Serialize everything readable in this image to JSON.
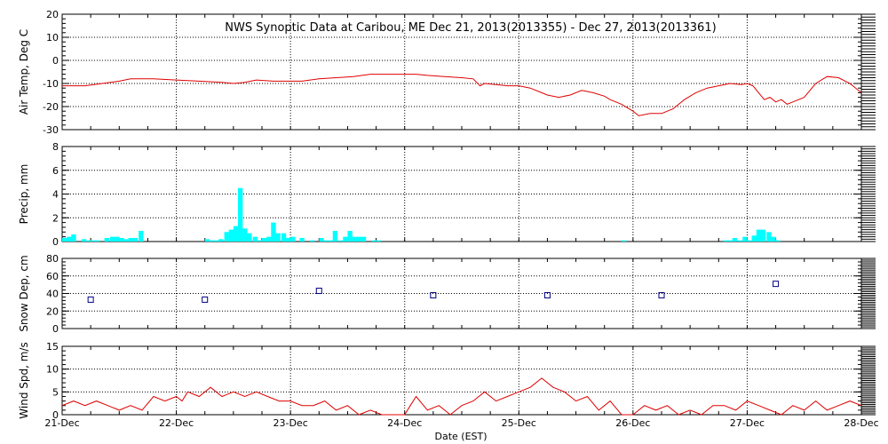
{
  "chart_data": {
    "title": "NWS Synoptic Data at Caribou, ME    Dec 21, 2013(2013355) - Dec 27, 2013(2013361)",
    "xlabel": "Date (EST)",
    "x_ticks": [
      "21-Dec",
      "22-Dec",
      "23-Dec",
      "24-Dec",
      "25-Dec",
      "26-Dec",
      "27-Dec",
      "28-Dec"
    ],
    "xlim_days": [
      0,
      7
    ],
    "colors": {
      "line": "#e00000",
      "bar": "#00ffff",
      "marker": "#000080",
      "grid": "#000000"
    },
    "panels": [
      {
        "id": "temp",
        "type": "line",
        "ylabel": "Air Temp, Deg C",
        "ylim": [
          -30,
          20
        ],
        "yticks": [
          "-30",
          "-20",
          "-10",
          "0",
          "10",
          "20"
        ],
        "series": [
          {
            "x": [
              0,
              0.2,
              0.35,
              0.5,
              0.6,
              0.8,
              1.0,
              1.2,
              1.4,
              1.5,
              1.6,
              1.7,
              1.85,
              2.0,
              2.1,
              2.25,
              2.4,
              2.55,
              2.7,
              2.85,
              3.0,
              3.1,
              3.2,
              3.35,
              3.5,
              3.6,
              3.66,
              3.7,
              3.8,
              3.9,
              4.0,
              4.1,
              4.2,
              4.25,
              4.35,
              4.45,
              4.55,
              4.65,
              4.75,
              4.8,
              4.9,
              5.0,
              5.05,
              5.15,
              5.25,
              5.35,
              5.45,
              5.55,
              5.65,
              5.75,
              5.85,
              5.95,
              6.0,
              6.05,
              6.1,
              6.15,
              6.2,
              6.25,
              6.3,
              6.35,
              6.45,
              6.5,
              6.55,
              6.6,
              6.7,
              6.8,
              6.9,
              7.0
            ],
            "y": [
              -11,
              -11,
              -10,
              -9,
              -8,
              -8,
              -8.5,
              -9,
              -9.5,
              -10,
              -9.5,
              -8.5,
              -9,
              -9,
              -9,
              -8,
              -7.5,
              -7,
              -6,
              -6,
              -6,
              -6,
              -6.5,
              -7,
              -7.5,
              -8,
              -11,
              -10,
              -10.5,
              -11,
              -11,
              -12,
              -14,
              -15,
              -16,
              -15,
              -13,
              -14,
              -15.5,
              -17,
              -19,
              -22,
              -24,
              -23,
              -23,
              -21,
              -17,
              -14,
              -12,
              -11,
              -10,
              -10.5,
              -10,
              -11,
              -14,
              -17,
              -16,
              -18,
              -17,
              -19,
              -17,
              -16,
              -13,
              -10,
              -7,
              -7.5,
              -10,
              -14
            ]
          }
        ]
      },
      {
        "id": "precip",
        "type": "bar",
        "ylabel": "Precip, mm",
        "ylim": [
          0,
          8
        ],
        "yticks": [
          "0",
          "2",
          "4",
          "6",
          "8"
        ],
        "bar_width_days": 0.0417,
        "bars": {
          "x": [
            0.0,
            0.04,
            0.08,
            0.17,
            0.21,
            0.25,
            0.29,
            0.37,
            0.42,
            0.46,
            0.5,
            0.54,
            0.58,
            0.62,
            0.67,
            1.25,
            1.29,
            1.33,
            1.37,
            1.42,
            1.46,
            1.5,
            1.54,
            1.58,
            1.62,
            1.67,
            1.71,
            1.75,
            1.79,
            1.83,
            1.87,
            1.92,
            1.96,
            2.0,
            2.08,
            2.17,
            2.25,
            2.29,
            2.33,
            2.37,
            2.42,
            2.46,
            2.5,
            2.54,
            2.58,
            2.62,
            2.71,
            2.75,
            4.9,
            5.79,
            5.83,
            5.87,
            5.92,
            5.96,
            6.0,
            6.04,
            6.08,
            6.12,
            6.17,
            6.21,
            6.25,
            6.29,
            6.33,
            6.37,
            6.42,
            6.46,
            6.5,
            6.54,
            6.58,
            6.62,
            6.67,
            6.71,
            6.75,
            6.79,
            6.83,
            6.87,
            6.92
          ],
          "values": [
            0.3,
            0.4,
            0.6,
            0.2,
            0.1,
            0.1,
            0.1,
            0.3,
            0.4,
            0.4,
            0.3,
            0.2,
            0.3,
            0.3,
            0.9,
            0.2,
            0.1,
            0.1,
            0.2,
            0.8,
            1.0,
            1.3,
            4.5,
            1.1,
            0.7,
            0.4,
            0.1,
            0.3,
            0.4,
            1.6,
            0.7,
            0.7,
            0.3,
            0.4,
            0.3,
            0.1,
            0.3,
            0.1,
            0.1,
            0.9,
            0.1,
            0.4,
            0.9,
            0.4,
            0.4,
            0.4,
            0.1,
            0.1,
            0.1,
            0.1,
            0.1,
            0.3,
            0.1,
            0.4,
            0.1,
            0.5,
            1.0,
            1.0,
            0.8,
            0.4,
            0.1,
            0.0,
            0.0,
            0.0,
            0.0,
            0.0,
            0.0,
            0.0,
            0.0,
            0.0,
            0.0,
            0.0,
            0.0,
            0.0,
            0.0,
            0.0,
            0.0
          ]
        }
      },
      {
        "id": "snow",
        "type": "scatter",
        "ylabel": "Snow Dep, cm",
        "ylim": [
          0,
          80
        ],
        "yticks": [
          "0",
          "20",
          "40",
          "60",
          "80"
        ],
        "series": [
          {
            "x": [
              0.25,
              1.25,
              2.25,
              3.25,
              4.25,
              5.25,
              6.25
            ],
            "y": [
              33,
              33,
              43,
              38,
              38,
              38,
              51
            ]
          }
        ]
      },
      {
        "id": "wind",
        "type": "line",
        "ylabel": "Wind Spd, m/s",
        "ylim": [
          0,
          15
        ],
        "yticks": [
          "0",
          "5",
          "10",
          "15"
        ],
        "series": [
          {
            "x": [
              0,
              0.1,
              0.2,
              0.3,
              0.4,
              0.5,
              0.6,
              0.7,
              0.8,
              0.9,
              1.0,
              1.05,
              1.1,
              1.2,
              1.3,
              1.4,
              1.5,
              1.6,
              1.7,
              1.8,
              1.9,
              2.0,
              2.1,
              2.2,
              2.3,
              2.4,
              2.5,
              2.6,
              2.7,
              2.8,
              2.9,
              3.0,
              3.05,
              3.1,
              3.2,
              3.3,
              3.4,
              3.5,
              3.6,
              3.7,
              3.8,
              3.9,
              4.0,
              4.1,
              4.2,
              4.3,
              4.4,
              4.5,
              4.6,
              4.7,
              4.8,
              4.9,
              5.0,
              5.1,
              5.2,
              5.3,
              5.4,
              5.5,
              5.6,
              5.7,
              5.8,
              5.9,
              6.0,
              6.1,
              6.2,
              6.3,
              6.4,
              6.5,
              6.6,
              6.7,
              6.8,
              6.9,
              7.0
            ],
            "y": [
              2,
              3,
              2,
              3,
              2,
              1,
              2,
              1,
              4,
              3,
              4,
              3,
              5,
              4,
              6,
              4,
              5,
              4,
              5,
              4,
              3,
              3,
              2,
              2,
              3,
              1,
              2,
              0,
              1,
              0,
              0,
              0,
              2,
              4,
              1,
              2,
              0,
              2,
              3,
              5,
              3,
              4,
              5,
              6,
              8,
              6,
              5,
              3,
              4,
              1,
              3,
              0,
              0,
              2,
              1,
              2,
              0,
              1,
              0,
              2,
              2,
              1,
              3,
              2,
              1,
              0,
              2,
              1,
              3,
              1,
              2,
              3,
              2
            ]
          }
        ]
      }
    ]
  }
}
